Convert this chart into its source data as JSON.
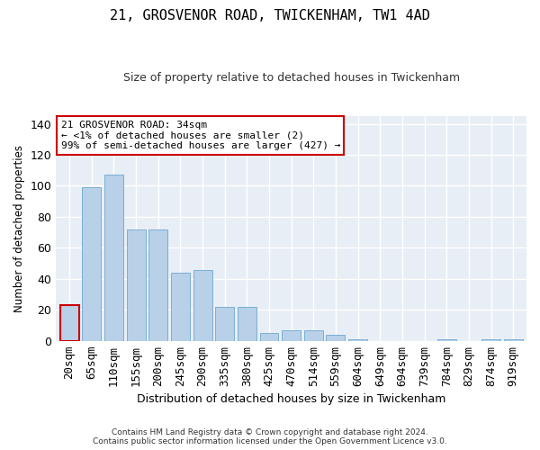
{
  "title": "21, GROSVENOR ROAD, TWICKENHAM, TW1 4AD",
  "subtitle": "Size of property relative to detached houses in Twickenham",
  "xlabel": "Distribution of detached houses by size in Twickenham",
  "ylabel": "Number of detached properties",
  "categories": [
    "20sqm",
    "65sqm",
    "110sqm",
    "155sqm",
    "200sqm",
    "245sqm",
    "290sqm",
    "335sqm",
    "380sqm",
    "425sqm",
    "470sqm",
    "514sqm",
    "559sqm",
    "604sqm",
    "649sqm",
    "694sqm",
    "739sqm",
    "784sqm",
    "829sqm",
    "874sqm",
    "919sqm"
  ],
  "values": [
    23,
    99,
    107,
    72,
    72,
    44,
    46,
    22,
    22,
    5,
    7,
    7,
    4,
    1,
    0,
    0,
    0,
    1,
    0,
    1,
    1
  ],
  "bar_color": "#b8d0e8",
  "bar_edge_color": "#7aafd4",
  "highlight_index": 0,
  "highlight_edge_color": "#cc0000",
  "annotation_text": "21 GROSVENOR ROAD: 34sqm\n← <1% of detached houses are smaller (2)\n99% of semi-detached houses are larger (427) →",
  "annotation_box_color": "#ffffff",
  "annotation_box_edge_color": "#cc0000",
  "ylim": [
    0,
    145
  ],
  "yticks": [
    0,
    20,
    40,
    60,
    80,
    100,
    120,
    140
  ],
  "bg_color": "#e8eef5",
  "grid_color": "#ffffff",
  "fig_bg_color": "#ffffff",
  "footer_line1": "Contains HM Land Registry data © Crown copyright and database right 2024.",
  "footer_line2": "Contains public sector information licensed under the Open Government Licence v3.0."
}
